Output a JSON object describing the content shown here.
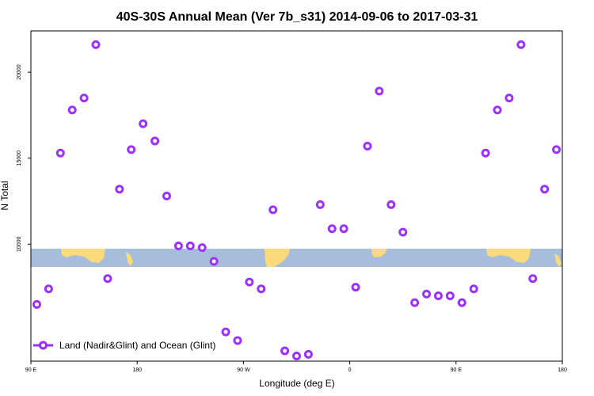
{
  "chart_data": {
    "type": "scatter",
    "title": "40S-30S Annual Mean (Ver 7b_s31)   2014-09-06 to 2017-03-31",
    "xlabel": "Longitude (deg E)",
    "ylabel": "N Total",
    "xlim": [
      90,
      540
    ],
    "ylim": [
      3200,
      22400
    ],
    "x_ticks": [
      {
        "value": 90,
        "label": "90 E"
      },
      {
        "value": 180,
        "label": "180"
      },
      {
        "value": 270,
        "label": "90 W"
      },
      {
        "value": 360,
        "label": "0"
      },
      {
        "value": 450,
        "label": "90 E"
      },
      {
        "value": 540,
        "label": "180"
      }
    ],
    "y_ticks": [
      {
        "value": 10000,
        "label": "10000"
      },
      {
        "value": 15000,
        "label": "15000"
      },
      {
        "value": 20000,
        "label": "20000"
      }
    ],
    "legend": {
      "label": "Land (Nadir&Glint) and Ocean (Glint)",
      "position": "bottom-left"
    },
    "series": [
      {
        "name": "Land (Nadir&Glint) and Ocean (Glint)",
        "color": "#9b30ff",
        "x": [
          95,
          105,
          115,
          125,
          135,
          145,
          155,
          165,
          175,
          185,
          195,
          205,
          215,
          225,
          235,
          245,
          255,
          265,
          275,
          285,
          295,
          305,
          315,
          325,
          335,
          345,
          355,
          365,
          375,
          385,
          395,
          405,
          415,
          425,
          435,
          445,
          455,
          465,
          475,
          485,
          495,
          505,
          515,
          525,
          535
        ],
        "y": [
          6500,
          7400,
          15300,
          17800,
          18500,
          21600,
          8000,
          13200,
          15500,
          17000,
          16000,
          12800,
          9900,
          9900,
          9800,
          9000,
          4900,
          4400,
          7800,
          7400,
          12000,
          3800,
          3500,
          3600,
          12300,
          10900,
          10900,
          7500,
          15700,
          18900,
          12300,
          10700,
          6600,
          7100,
          7000,
          7000,
          6600,
          7400,
          15300,
          17800,
          18500,
          21600,
          8000,
          13200,
          15500
        ]
      }
    ]
  },
  "map_band": {
    "ocean_color": "#a6bddb",
    "land_color": "#fcd97a"
  }
}
